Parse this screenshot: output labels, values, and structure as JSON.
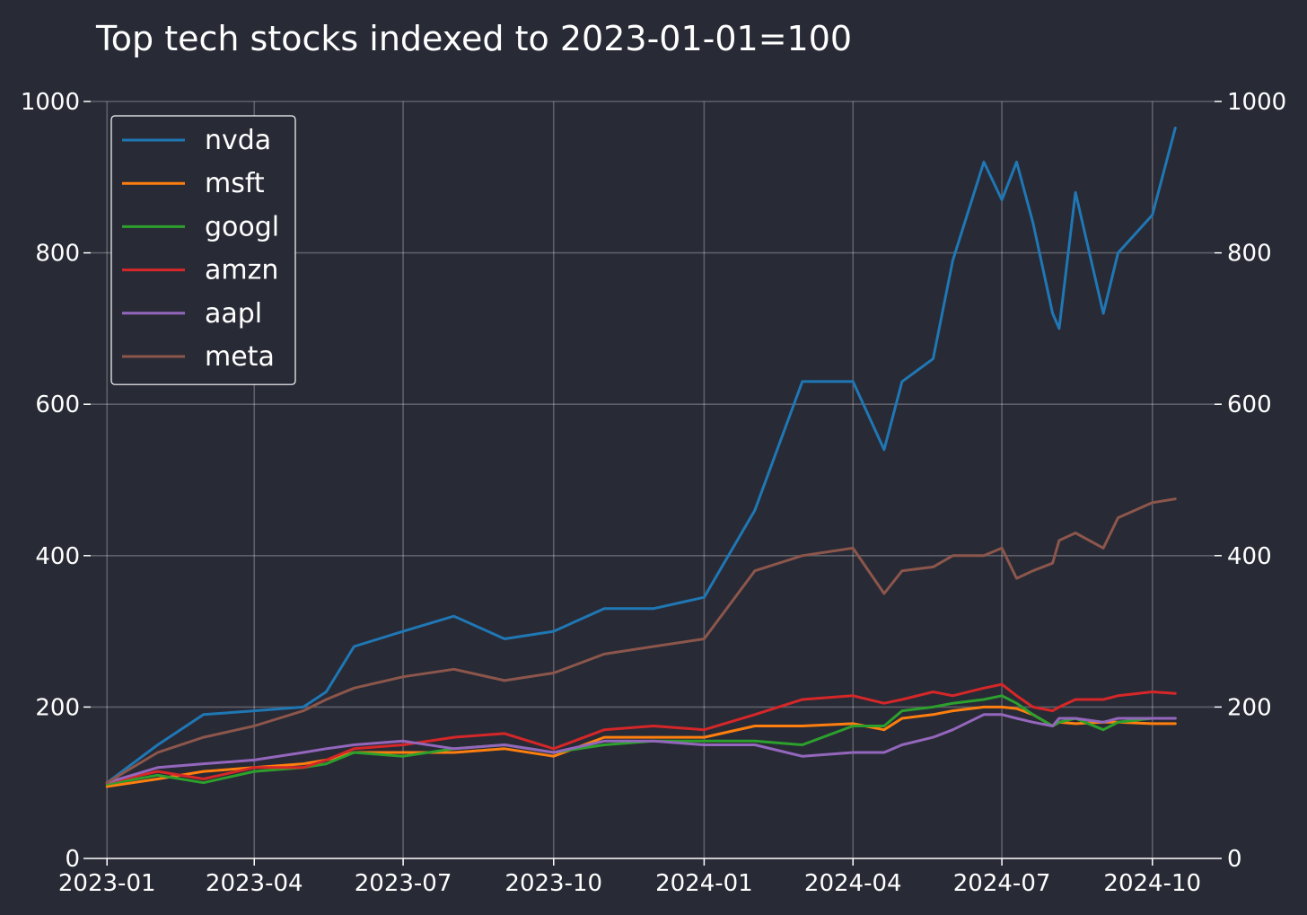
{
  "chart_data": {
    "type": "line",
    "title": "Top tech stocks indexed to 2023-01-01=100",
    "xlabel": "",
    "ylabel": "",
    "x_ticks": [
      "2023-01",
      "2023-04",
      "2023-07",
      "2023-10",
      "2024-01",
      "2024-04",
      "2024-07",
      "2024-10"
    ],
    "y_ticks": [
      "0",
      "200",
      "400",
      "600",
      "800",
      "1000"
    ],
    "xlim": [
      "2022-12-22",
      "2024-11-08"
    ],
    "ylim": [
      0,
      1000
    ],
    "grid": true,
    "secondary_y_axis": true,
    "legend_position": "top-left",
    "x": [
      "2023-01-01",
      "2023-02-01",
      "2023-03-01",
      "2023-04-01",
      "2023-05-01",
      "2023-05-15",
      "2023-06-01",
      "2023-07-01",
      "2023-08-01",
      "2023-09-01",
      "2023-10-01",
      "2023-11-01",
      "2023-12-01",
      "2024-01-01",
      "2024-02-01",
      "2024-03-01",
      "2024-04-01",
      "2024-04-20",
      "2024-05-01",
      "2024-05-20",
      "2024-06-01",
      "2024-06-20",
      "2024-07-01",
      "2024-07-10",
      "2024-07-20",
      "2024-08-01",
      "2024-08-05",
      "2024-08-15",
      "2024-09-01",
      "2024-09-10",
      "2024-10-01",
      "2024-10-15"
    ],
    "series": [
      {
        "name": "nvda",
        "color": "#1f77b4",
        "values": [
          100,
          150,
          190,
          195,
          200,
          220,
          280,
          300,
          320,
          290,
          300,
          330,
          330,
          345,
          460,
          630,
          630,
          540,
          630,
          660,
          790,
          920,
          870,
          920,
          840,
          720,
          700,
          880,
          720,
          800,
          850,
          965
        ]
      },
      {
        "name": "msft",
        "color": "#ff7f0e",
        "values": [
          95,
          105,
          115,
          120,
          125,
          130,
          140,
          140,
          140,
          145,
          135,
          160,
          160,
          160,
          175,
          175,
          178,
          170,
          185,
          190,
          195,
          200,
          200,
          198,
          190,
          175,
          180,
          178,
          180,
          180,
          178,
          178
        ]
      },
      {
        "name": "googl",
        "color": "#2ca02c",
        "values": [
          98,
          110,
          100,
          115,
          120,
          125,
          140,
          135,
          145,
          150,
          140,
          150,
          155,
          155,
          155,
          150,
          175,
          175,
          195,
          200,
          205,
          210,
          215,
          205,
          190,
          175,
          180,
          185,
          170,
          180,
          185,
          185
        ]
      },
      {
        "name": "amzn",
        "color": "#d62728",
        "values": [
          100,
          115,
          105,
          120,
          120,
          130,
          145,
          150,
          160,
          165,
          145,
          170,
          175,
          170,
          190,
          210,
          215,
          205,
          210,
          220,
          215,
          225,
          230,
          215,
          200,
          195,
          200,
          210,
          210,
          215,
          220,
          218
        ]
      },
      {
        "name": "aapl",
        "color": "#9467bd",
        "values": [
          100,
          120,
          125,
          130,
          140,
          145,
          150,
          155,
          145,
          150,
          140,
          155,
          155,
          150,
          150,
          135,
          140,
          140,
          150,
          160,
          170,
          190,
          190,
          185,
          180,
          175,
          185,
          185,
          180,
          185,
          185,
          185
        ]
      },
      {
        "name": "meta",
        "color": "#8c564b",
        "values": [
          100,
          140,
          160,
          175,
          195,
          210,
          225,
          240,
          250,
          235,
          245,
          270,
          280,
          290,
          380,
          400,
          410,
          350,
          380,
          385,
          400,
          400,
          410,
          370,
          380,
          390,
          420,
          430,
          410,
          450,
          470,
          475
        ]
      }
    ]
  }
}
